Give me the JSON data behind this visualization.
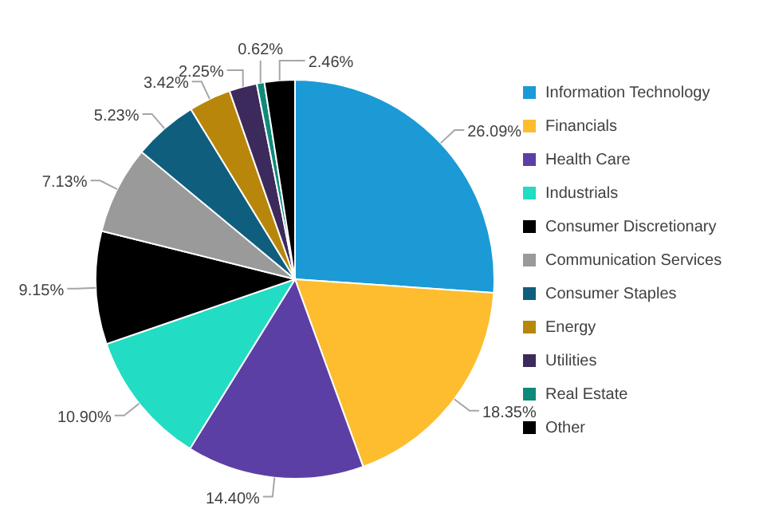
{
  "chart_data": {
    "type": "pie",
    "categories": [
      "Information Technology",
      "Financials",
      "Health Care",
      "Industrials",
      "Consumer Discretionary",
      "Communication Services",
      "Consumer Staples",
      "Energy",
      "Utilities",
      "Real Estate",
      "Other"
    ],
    "values": [
      26.09,
      18.35,
      14.4,
      10.9,
      9.15,
      7.13,
      5.23,
      3.42,
      2.25,
      0.62,
      2.46
    ],
    "value_labels": [
      "26.09%",
      "18.35%",
      "14.40%",
      "10.90%",
      "9.15%",
      "7.13%",
      "5.23%",
      "3.42%",
      "2.25%",
      "0.62%",
      "2.46%"
    ],
    "colors": [
      "#1b9ad6",
      "#fdbd2e",
      "#5b3fa5",
      "#22dcc4",
      "#000000",
      "#9a9a9a",
      "#0f5e7e",
      "#b8860b",
      "#3d2a5c",
      "#0e8a7a",
      "#000000"
    ],
    "legend": "right"
  }
}
